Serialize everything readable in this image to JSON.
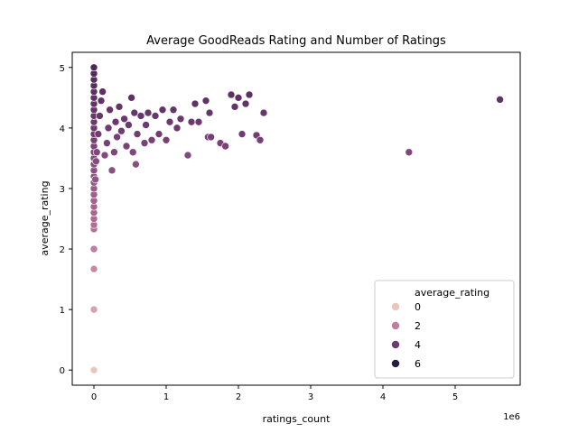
{
  "chart_data": {
    "type": "scatter",
    "title": "Average GoodReads Rating and Number of Ratings",
    "xlabel": "ratings_count",
    "ylabel": "average_rating",
    "x_offset_label": "1e6",
    "xlim": [
      -300000,
      5900000
    ],
    "ylim": [
      -0.25,
      5.25
    ],
    "xticks": [
      0,
      1,
      2,
      3,
      4,
      5
    ],
    "yticks": [
      0,
      1,
      2,
      3,
      4,
      5
    ],
    "grid": false,
    "legend": {
      "title": "average_rating",
      "placement": "lower-right",
      "entries": [
        {
          "label": "0",
          "color": "#ebc6bb"
        },
        {
          "label": "2",
          "color": "#c27c9e"
        },
        {
          "label": "4",
          "color": "#6f3a72"
        },
        {
          "label": "6",
          "color": "#2b1b3d"
        }
      ]
    },
    "points": [
      {
        "x": 0,
        "y": 0.0
      },
      {
        "x": 0,
        "y": 1.0
      },
      {
        "x": 0,
        "y": 1.67
      },
      {
        "x": 0,
        "y": 2.0
      },
      {
        "x": 0,
        "y": 2.33
      },
      {
        "x": 0,
        "y": 2.4
      },
      {
        "x": 0,
        "y": 2.5
      },
      {
        "x": 0,
        "y": 2.6
      },
      {
        "x": 0,
        "y": 2.7
      },
      {
        "x": 0,
        "y": 2.8
      },
      {
        "x": 0,
        "y": 2.9
      },
      {
        "x": 0,
        "y": 3.0
      },
      {
        "x": 0,
        "y": 3.1
      },
      {
        "x": 0,
        "y": 3.2
      },
      {
        "x": 0,
        "y": 3.3
      },
      {
        "x": 0,
        "y": 3.4
      },
      {
        "x": 0,
        "y": 3.5
      },
      {
        "x": 0,
        "y": 3.6
      },
      {
        "x": 0,
        "y": 3.7
      },
      {
        "x": 0,
        "y": 3.8
      },
      {
        "x": 0,
        "y": 3.9
      },
      {
        "x": 0,
        "y": 4.0
      },
      {
        "x": 0,
        "y": 4.1
      },
      {
        "x": 0,
        "y": 4.2
      },
      {
        "x": 0,
        "y": 4.3
      },
      {
        "x": 0,
        "y": 4.4
      },
      {
        "x": 0,
        "y": 4.5
      },
      {
        "x": 0,
        "y": 4.6
      },
      {
        "x": 0,
        "y": 4.7
      },
      {
        "x": 0,
        "y": 4.8
      },
      {
        "x": 0,
        "y": 4.9
      },
      {
        "x": 0,
        "y": 5.0
      },
      {
        "x": 20000,
        "y": 3.15
      },
      {
        "x": 30000,
        "y": 3.45
      },
      {
        "x": 40000,
        "y": 3.6
      },
      {
        "x": 60000,
        "y": 3.9
      },
      {
        "x": 80000,
        "y": 4.2
      },
      {
        "x": 100000,
        "y": 4.45
      },
      {
        "x": 120000,
        "y": 4.6
      },
      {
        "x": 150000,
        "y": 3.55
      },
      {
        "x": 180000,
        "y": 3.75
      },
      {
        "x": 200000,
        "y": 4.0
      },
      {
        "x": 220000,
        "y": 4.3
      },
      {
        "x": 250000,
        "y": 3.3
      },
      {
        "x": 280000,
        "y": 3.6
      },
      {
        "x": 300000,
        "y": 4.1
      },
      {
        "x": 320000,
        "y": 3.85
      },
      {
        "x": 350000,
        "y": 4.35
      },
      {
        "x": 380000,
        "y": 3.95
      },
      {
        "x": 420000,
        "y": 4.15
      },
      {
        "x": 450000,
        "y": 3.7
      },
      {
        "x": 480000,
        "y": 4.05
      },
      {
        "x": 520000,
        "y": 4.5
      },
      {
        "x": 540000,
        "y": 3.6
      },
      {
        "x": 560000,
        "y": 4.25
      },
      {
        "x": 580000,
        "y": 3.4
      },
      {
        "x": 600000,
        "y": 3.9
      },
      {
        "x": 650000,
        "y": 4.2
      },
      {
        "x": 700000,
        "y": 3.75
      },
      {
        "x": 720000,
        "y": 4.05
      },
      {
        "x": 750000,
        "y": 4.25
      },
      {
        "x": 800000,
        "y": 3.8
      },
      {
        "x": 850000,
        "y": 4.2
      },
      {
        "x": 900000,
        "y": 3.9
      },
      {
        "x": 950000,
        "y": 4.3
      },
      {
        "x": 1000000,
        "y": 3.8
      },
      {
        "x": 1050000,
        "y": 4.1
      },
      {
        "x": 1100000,
        "y": 4.3
      },
      {
        "x": 1150000,
        "y": 4.0
      },
      {
        "x": 1200000,
        "y": 4.15
      },
      {
        "x": 1300000,
        "y": 3.55
      },
      {
        "x": 1350000,
        "y": 4.1
      },
      {
        "x": 1400000,
        "y": 4.4
      },
      {
        "x": 1450000,
        "y": 4.1
      },
      {
        "x": 1550000,
        "y": 4.45
      },
      {
        "x": 1580000,
        "y": 3.85
      },
      {
        "x": 1600000,
        "y": 4.25
      },
      {
        "x": 1620000,
        "y": 3.85
      },
      {
        "x": 1750000,
        "y": 3.75
      },
      {
        "x": 1820000,
        "y": 3.7
      },
      {
        "x": 1900000,
        "y": 4.55
      },
      {
        "x": 1950000,
        "y": 4.35
      },
      {
        "x": 2000000,
        "y": 4.5
      },
      {
        "x": 2050000,
        "y": 3.9
      },
      {
        "x": 2100000,
        "y": 4.4
      },
      {
        "x": 2150000,
        "y": 4.55
      },
      {
        "x": 2250000,
        "y": 3.88
      },
      {
        "x": 2300000,
        "y": 3.8
      },
      {
        "x": 2350000,
        "y": 4.25
      },
      {
        "x": 4360000,
        "y": 3.6
      },
      {
        "x": 5620000,
        "y": 4.47
      }
    ]
  }
}
